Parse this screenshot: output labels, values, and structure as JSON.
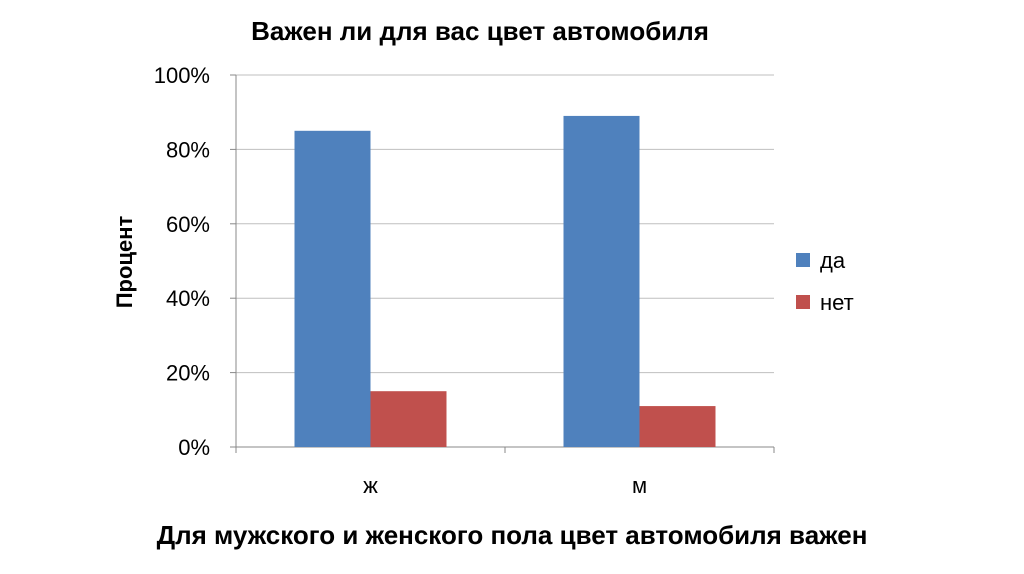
{
  "chart_data": {
    "type": "bar",
    "title": "Важен ли для вас цвет автомобиля",
    "xlabel": "",
    "ylabel": "Процент",
    "categories": [
      "ж",
      "м"
    ],
    "series": [
      {
        "name": "да",
        "values": [
          85,
          89
        ],
        "color": "#4F81BD"
      },
      {
        "name": "нет",
        "values": [
          15,
          11
        ],
        "color": "#C0504D"
      }
    ],
    "ylim": [
      0,
      100
    ],
    "yticks": [
      "0%",
      "20%",
      "40%",
      "60%",
      "80%",
      "100%"
    ],
    "grid": true,
    "legend": "right"
  },
  "caption": "Для мужского и женского пола цвет автомобиля важен"
}
